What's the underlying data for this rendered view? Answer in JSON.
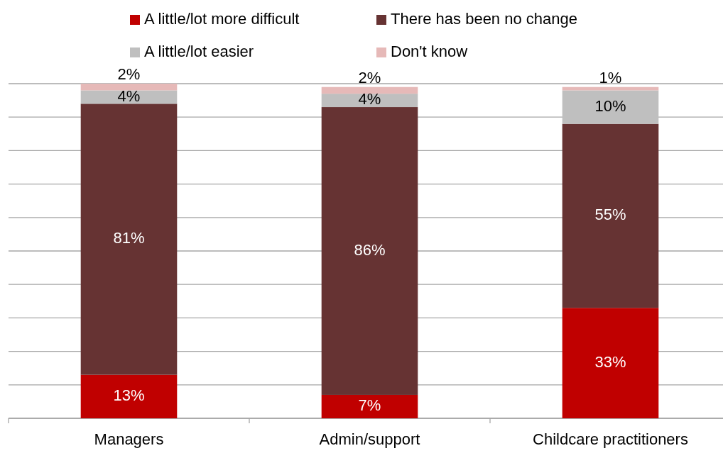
{
  "chart_data": {
    "type": "bar",
    "stacked": true,
    "categories": [
      "Managers",
      "Admin/support",
      "Childcare practitioners"
    ],
    "series": [
      {
        "name": "A little/lot more difficult",
        "color": "#c00000",
        "values": [
          13,
          7,
          33
        ],
        "value_labels": [
          "13%",
          "7%",
          "33%"
        ]
      },
      {
        "name": "There has been no change",
        "color": "#663333",
        "values": [
          81,
          86,
          55
        ],
        "value_labels": [
          "81%",
          "86%",
          "55%"
        ]
      },
      {
        "name": "A little/lot easier",
        "color": "#bfbfbf",
        "values": [
          4,
          4,
          10
        ],
        "value_labels": [
          "4%",
          "4%",
          "10%"
        ]
      },
      {
        "name": "Don't know",
        "color": "#e6b9b8",
        "values": [
          2,
          2,
          1
        ],
        "value_labels": [
          "2%",
          "2%",
          "1%"
        ]
      }
    ],
    "ylim": [
      0,
      100
    ],
    "yticks": [
      {
        "value": 0,
        "label": null
      },
      {
        "value": 10,
        "label": null
      },
      {
        "value": 20,
        "label": null
      },
      {
        "value": 30,
        "label": null
      },
      {
        "value": 40,
        "label": null
      },
      {
        "value": 50,
        "label": null
      },
      {
        "value": 60,
        "label": null
      },
      {
        "value": 70,
        "label": null
      },
      {
        "value": 80,
        "label": null
      },
      {
        "value": 90,
        "label": null
      },
      {
        "value": 100,
        "label": null
      }
    ],
    "tick_labels": "x",
    "grid": "y",
    "legend": "top"
  }
}
